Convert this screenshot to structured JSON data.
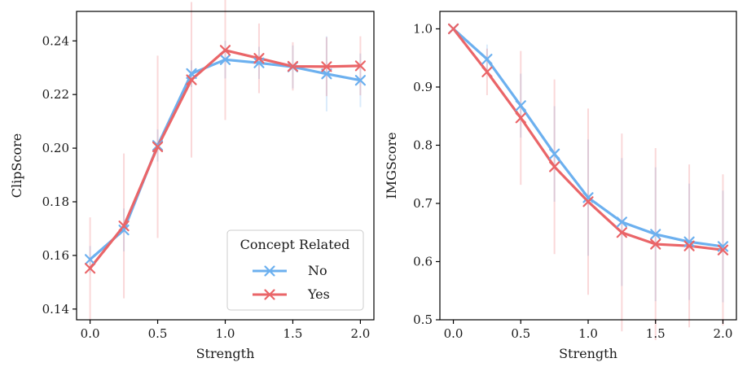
{
  "colors": {
    "No": "#6cb0ef",
    "Yes": "#ea6568"
  },
  "legend": {
    "title": "Concept Related",
    "entries": [
      {
        "name": "No",
        "label": "No"
      },
      {
        "name": "Yes",
        "label": "Yes"
      }
    ],
    "placement": "lower-right of left panel"
  },
  "chart_data": [
    {
      "type": "line",
      "xlabel": "Strength",
      "ylabel": "ClipScore",
      "xlim": [
        -0.1,
        2.1
      ],
      "ylim": [
        0.136,
        0.251
      ],
      "xticks": [
        0.0,
        0.5,
        1.0,
        1.5,
        2.0
      ],
      "xtick_labels": [
        "0.0",
        "0.5",
        "1.0",
        "1.5",
        "2.0"
      ],
      "yticks": [
        0.14,
        0.16,
        0.18,
        0.2,
        0.22,
        0.24
      ],
      "ytick_labels": [
        "0.14",
        "0.16",
        "0.18",
        "0.20",
        "0.22",
        "0.24"
      ],
      "x": [
        0.0,
        0.25,
        0.5,
        0.75,
        1.0,
        1.25,
        1.5,
        1.75,
        2.0
      ],
      "series": [
        {
          "name": "No",
          "values": [
            0.1585,
            0.1695,
            0.201,
            0.2278,
            0.233,
            0.2318,
            0.2303,
            0.2277,
            0.2253
          ],
          "err": [
            0.005,
            0.008,
            0.006,
            0.005,
            0.007,
            0.006,
            0.008,
            0.014,
            0.01
          ]
        },
        {
          "name": "Yes",
          "values": [
            0.1552,
            0.171,
            0.2005,
            0.2255,
            0.2365,
            0.2335,
            0.2305,
            0.2304,
            0.2307
          ],
          "err": [
            0.019,
            0.027,
            0.034,
            0.029,
            0.026,
            0.013,
            0.009,
            0.011,
            0.011
          ]
        }
      ]
    },
    {
      "type": "line",
      "xlabel": "Strength",
      "ylabel": "IMGScore",
      "xlim": [
        -0.1,
        2.1
      ],
      "ylim": [
        0.5,
        1.03
      ],
      "xticks": [
        0.0,
        0.5,
        1.0,
        1.5,
        2.0
      ],
      "xtick_labels": [
        "0.0",
        "0.5",
        "1.0",
        "1.5",
        "2.0"
      ],
      "yticks": [
        0.5,
        0.6,
        0.7,
        0.8,
        0.9,
        1.0
      ],
      "ytick_labels": [
        "0.5",
        "0.6",
        "0.7",
        "0.8",
        "0.9",
        "1.0"
      ],
      "x": [
        0.0,
        0.25,
        0.5,
        0.75,
        1.0,
        1.25,
        1.5,
        1.75,
        2.0
      ],
      "series": [
        {
          "name": "No",
          "values": [
            1.0,
            0.948,
            0.868,
            0.785,
            0.71,
            0.668,
            0.647,
            0.634,
            0.626
          ],
          "err": [
            0.0,
            0.025,
            0.055,
            0.082,
            0.1,
            0.11,
            0.115,
            0.1,
            0.096
          ]
        },
        {
          "name": "Yes",
          "values": [
            1.0,
            0.926,
            0.847,
            0.763,
            0.703,
            0.65,
            0.63,
            0.627,
            0.62
          ],
          "err": [
            0.0,
            0.04,
            0.115,
            0.15,
            0.16,
            0.17,
            0.165,
            0.14,
            0.13
          ]
        }
      ]
    }
  ]
}
